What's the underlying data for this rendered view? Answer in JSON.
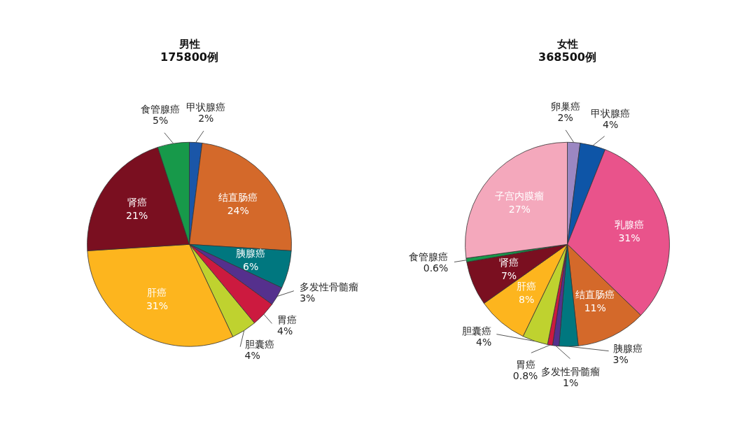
{
  "chart_data": [
    {
      "type": "pie",
      "title": "男性",
      "subtitle": "175800例",
      "categories": [
        "甲状腺癌",
        "结直肠癌",
        "胰腺癌",
        "多发性骨髓瘤",
        "胃癌",
        "胆囊癌",
        "肝癌",
        "肾癌",
        "食管腺癌"
      ],
      "values": [
        2,
        24,
        6,
        3,
        4,
        4,
        31,
        21,
        5
      ],
      "value_labels": [
        "2%",
        "24%",
        "6%",
        "3%",
        "4%",
        "4%",
        "31%",
        "21%",
        "5%"
      ],
      "colors": [
        "#1a56a8",
        "#d4692a",
        "#00777f",
        "#55308d",
        "#cc1a3f",
        "#bfd22f",
        "#fdb51e",
        "#7a0f20",
        "#17994a"
      ]
    },
    {
      "type": "pie",
      "title": "女性",
      "subtitle": "368500例",
      "categories": [
        "卵巢癌",
        "甲状腺癌",
        "乳腺癌",
        "结直肠癌",
        "胰腺癌",
        "多发性骨髓瘤",
        "胃癌",
        "胆囊癌",
        "肝癌",
        "肾癌",
        "食管腺癌",
        "子宫内膜瘤"
      ],
      "values": [
        2,
        4,
        31,
        11,
        3,
        1,
        0.8,
        4,
        8,
        7,
        0.6,
        27
      ],
      "value_labels": [
        "2%",
        "4%",
        "31%",
        "11%",
        "3%",
        "1%",
        "0.8%",
        "4%",
        "8%",
        "7%",
        "0.6%",
        "27%"
      ],
      "colors": [
        "#9b87c2",
        "#0e55a7",
        "#e9538b",
        "#d4692a",
        "#00777f",
        "#55308d",
        "#cc1a3f",
        "#bfd22f",
        "#fdb51e",
        "#7a0f20",
        "#17994a",
        "#f4a8bc"
      ]
    }
  ]
}
